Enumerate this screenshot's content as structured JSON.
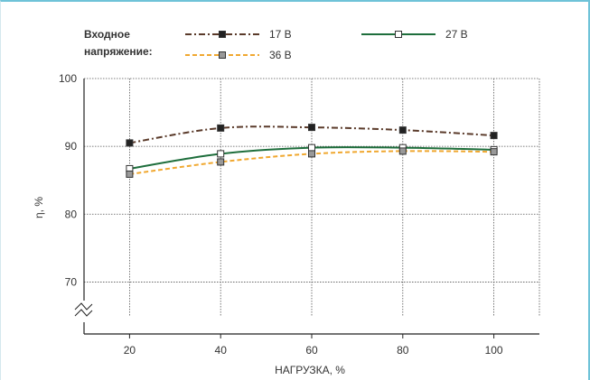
{
  "chart_data": {
    "type": "line",
    "legend_title": [
      "Входное",
      "напряжение:"
    ],
    "legend_placement": "top",
    "xlabel": "НАГРУЗКА, %",
    "ylabel": "η, %",
    "x": [
      20,
      40,
      60,
      80,
      100
    ],
    "xlim": [
      10,
      110
    ],
    "ylim": [
      65,
      100
    ],
    "y_ticks": [
      70,
      80,
      90,
      100
    ],
    "y_axis_break": true,
    "grid": "dotted",
    "series": [
      {
        "name": "17 В",
        "values": [
          90.5,
          92.7,
          92.8,
          92.4,
          91.6
        ],
        "color": "#5a3a2a",
        "line_style": "dash-dot",
        "marker": "filled-square",
        "marker_fill": "#222222"
      },
      {
        "name": "27 В",
        "values": [
          86.7,
          88.9,
          89.8,
          89.8,
          89.5
        ],
        "color": "#1e6e3c",
        "line_style": "solid",
        "marker": "open-square",
        "marker_fill": "#ffffff"
      },
      {
        "name": "36 В",
        "values": [
          85.9,
          87.7,
          88.9,
          89.3,
          89.2
        ],
        "color": "#f0a830",
        "line_style": "dashed",
        "marker": "grey-square",
        "marker_fill": "#999999"
      }
    ]
  }
}
